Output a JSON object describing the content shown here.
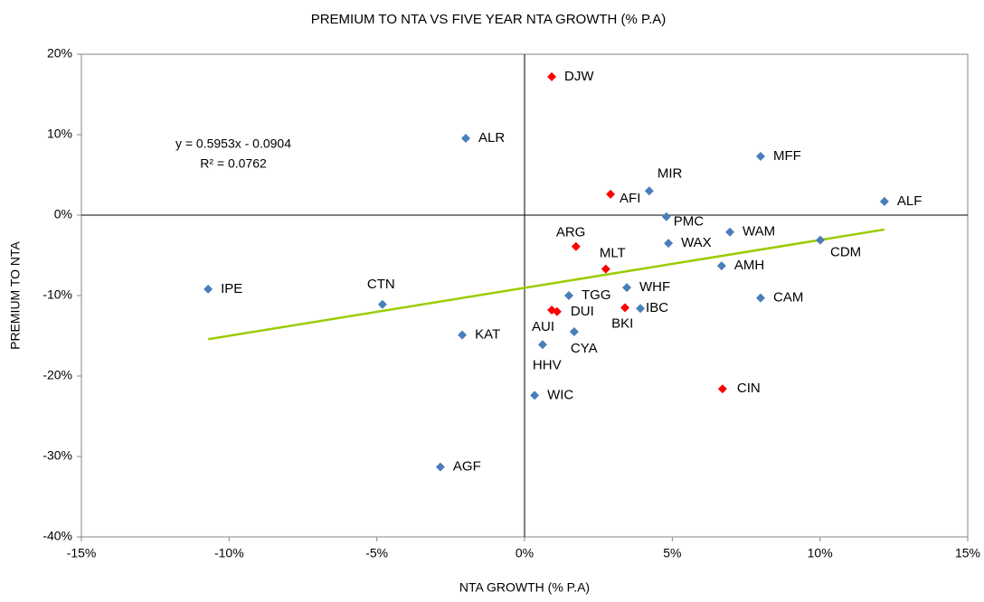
{
  "chart_data": {
    "type": "scatter",
    "title": "PREMIUM TO NTA VS FIVE YEAR NTA GROWTH (% P.A)",
    "x_label": "NTA GROWTH (% P.A)",
    "y_label": "PREMIUM TO NTA",
    "annotations": [
      "y = 0.5953x - 0.0904",
      "R² = 0.0762"
    ],
    "xlim": [
      -15,
      15
    ],
    "ylim": [
      -40,
      20
    ],
    "xticks": [
      {
        "value": -15,
        "label": "-15%"
      },
      {
        "value": -10,
        "label": "-10%"
      },
      {
        "value": -5,
        "label": "-5%"
      },
      {
        "value": 0,
        "label": "0%"
      },
      {
        "value": 5,
        "label": "5%"
      },
      {
        "value": 10,
        "label": "10%"
      },
      {
        "value": 15,
        "label": "15%"
      }
    ],
    "yticks": [
      {
        "value": -40,
        "label": "-40%"
      },
      {
        "value": -30,
        "label": "-30%"
      },
      {
        "value": -20,
        "label": "-20%"
      },
      {
        "value": -10,
        "label": "-10%"
      },
      {
        "value": 0,
        "label": "0%"
      },
      {
        "value": 10,
        "label": "10%"
      },
      {
        "value": 20,
        "label": "20%"
      }
    ],
    "series": [
      {
        "color": "#4a7ebb",
        "labels": [
          "ALR",
          "MFF",
          "MIR",
          "ALF",
          "PMC",
          "WAM",
          "WAX",
          "CDM",
          "AMH",
          "IPE",
          "CTN",
          "TGG",
          "WHF",
          "CAM",
          "IBC",
          "KAT",
          "CYA",
          "HHV",
          "WIC",
          "AGF"
        ],
        "x": [
          -1.99,
          7.99,
          4.22,
          12.18,
          4.8,
          6.95,
          4.87,
          10.01,
          6.67,
          -10.71,
          -4.81,
          1.5,
          3.46,
          7.99,
          3.92,
          -2.11,
          1.68,
          0.61,
          0.34,
          -2.85
        ],
        "y": [
          9.55,
          7.3,
          3.0,
          1.7,
          -0.2,
          -2.1,
          -3.5,
          -3.1,
          -6.3,
          -9.2,
          -11.1,
          -10.0,
          -9.0,
          -10.3,
          -11.6,
          -14.9,
          -14.5,
          -16.1,
          -22.4,
          -31.3
        ]
      },
      {
        "color": "#ff0000",
        "labels": [
          "DJW",
          "AFI",
          "ARG",
          "MLT",
          "AUI",
          "DUI",
          "BKI",
          "CIN"
        ],
        "x": [
          0.92,
          2.91,
          1.74,
          2.75,
          0.92,
          1.1,
          3.4,
          6.7
        ],
        "y": [
          17.2,
          2.6,
          -3.9,
          -6.7,
          -11.8,
          -12.0,
          -11.5,
          -21.6
        ]
      }
    ],
    "trendline": {
      "color": "#99cc00",
      "x": [
        -10.71,
        12.18
      ],
      "y": [
        -15.42,
        -1.79
      ]
    }
  }
}
